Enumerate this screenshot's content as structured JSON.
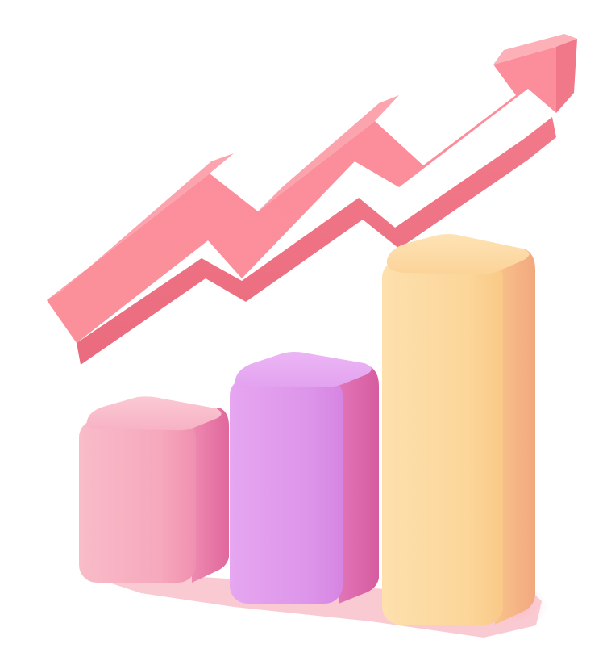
{
  "scene": {
    "kind": "3d-growth-bar-chart-illustration",
    "bars": [
      {
        "name": "short",
        "relative_height": 0.35,
        "color": "#f7a9bd"
      },
      {
        "name": "medium",
        "relative_height": 0.52,
        "color": "#e49ff0"
      },
      {
        "name": "tall",
        "relative_height": 1.0,
        "color": "#fdd69a"
      }
    ],
    "arrow": {
      "direction": "up-right",
      "color": "#fb8e9a"
    },
    "shadow_color": "#f9b8c3",
    "background": "#ffffff"
  }
}
